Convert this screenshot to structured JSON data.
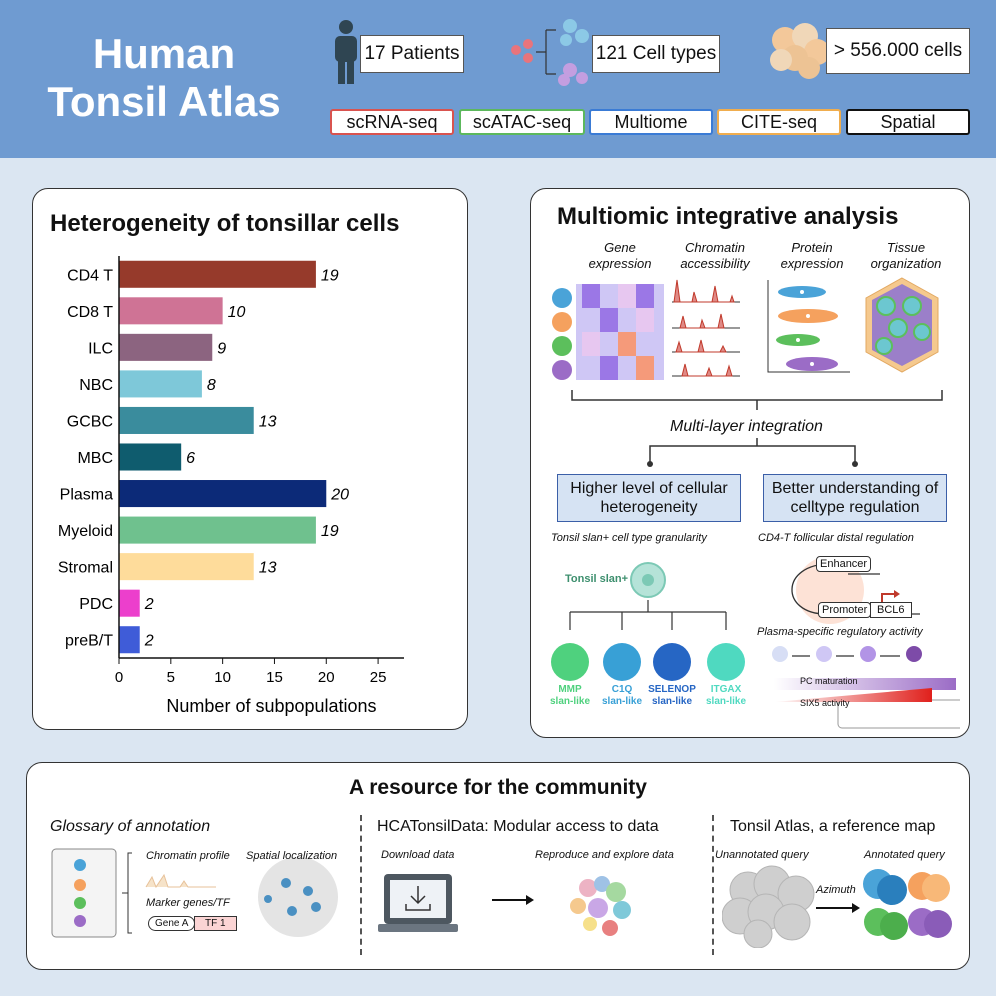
{
  "header": {
    "title_line1": "Human",
    "title_line2": "Tonsil Atlas",
    "patients": "17 Patients",
    "cell_types": "121 Cell types",
    "cells": "> 556.000 cells",
    "assays": [
      {
        "label": "scRNA-seq",
        "color": "#d9534f"
      },
      {
        "label": "scATAC-seq",
        "color": "#5cb85c"
      },
      {
        "label": "Multiome",
        "color": "#3a7bd5"
      },
      {
        "label": "CITE-seq",
        "color": "#f0ad4e"
      },
      {
        "label": "Spatial",
        "color": "#111111"
      }
    ]
  },
  "heterogeneity": {
    "title": "Heterogeneity of tonsillar cells",
    "chart_data": {
      "type": "bar",
      "orientation": "horizontal",
      "categories": [
        "CD4 T",
        "CD8 T",
        "ILC",
        "NBC",
        "GCBC",
        "MBC",
        "Plasma",
        "Myeloid",
        "Stromal",
        "PDC",
        "preB/T"
      ],
      "values": [
        19,
        10,
        9,
        8,
        13,
        6,
        20,
        19,
        13,
        2,
        2
      ],
      "colors": [
        "#963a2b",
        "#cf7395",
        "#8c6480",
        "#7ec8d9",
        "#3a8c9d",
        "#0f5c6e",
        "#0c2a78",
        "#6fc18e",
        "#fedc9b",
        "#ec3fcc",
        "#3f5cd8"
      ],
      "xlabel": "Number of subpopulations",
      "xticks": [
        0,
        5,
        10,
        15,
        20,
        25
      ],
      "xlim": [
        0,
        27.5
      ],
      "grid": false
    }
  },
  "multiomic": {
    "title": "Multiomic integrative analysis",
    "columns": [
      "Gene expression",
      "Chromatin accessibility",
      "Protein expression",
      "Tissue organization"
    ],
    "integration_label": "Multi-layer integration",
    "box_left": "Higher level of cellular heterogeneity",
    "box_right": "Better understanding of celltype regulation",
    "left_caption": "Tonsil slan+ cell type granularity",
    "right_caption": "CD4-T follicular distal regulation",
    "root_cell": "Tonsil slan+",
    "leaf_cells": [
      {
        "name": "MMP",
        "sub": "slan-like",
        "color": "#4fd17e"
      },
      {
        "name": "C1Q",
        "sub": "slan-like",
        "color": "#38a0d6"
      },
      {
        "name": "SELENOP",
        "sub": "slan-like",
        "color": "#2666c4"
      },
      {
        "name": "ITGAX",
        "sub": "slan-like",
        "color": "#4fd9c0"
      }
    ],
    "enhancer": "Enhancer",
    "promoter": "Promoter",
    "gene": "BCL6",
    "plasma_caption": "Plasma-specific regulatory activity",
    "pc_maturation": "PC maturation",
    "six5": "SIX5 activity"
  },
  "community": {
    "title": "A resource for the community",
    "glossary": {
      "heading": "Glossary of annotation",
      "chromatin": "Chromatin profile",
      "spatial": "Spatial localization",
      "marker": "Marker genes/TF",
      "gene_a": "Gene A",
      "tf1": "TF 1"
    },
    "hca": {
      "heading": "HCATonsilData: Modular access to data",
      "download": "Download data",
      "reproduce": "Reproduce and explore data"
    },
    "atlas": {
      "heading": "Tonsil Atlas, a reference map",
      "unannotated": "Unannotated query",
      "annotated": "Annotated query",
      "azimuth": "Azimuth"
    }
  }
}
